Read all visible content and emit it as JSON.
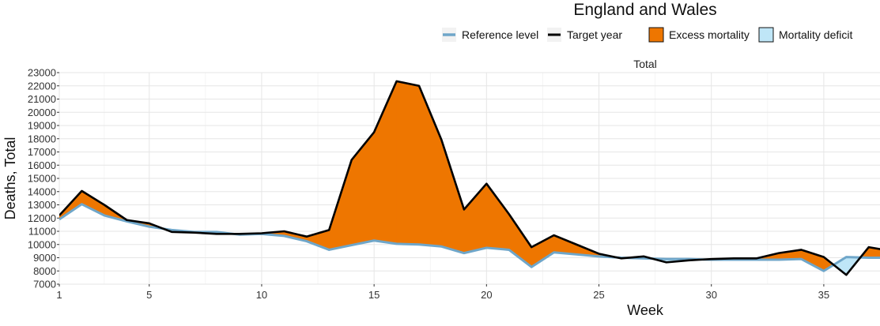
{
  "chart_data": {
    "type": "area",
    "title": "England and Wales",
    "facet_label": "Total",
    "xlabel": "Week",
    "ylabel": "Deaths, Total",
    "xlim": [
      1,
      37.5
    ],
    "ylim": [
      7000,
      23000
    ],
    "x_ticks": [
      1,
      5,
      10,
      15,
      20,
      25,
      30,
      35
    ],
    "y_ticks": [
      7000,
      8000,
      9000,
      10000,
      11000,
      12000,
      13000,
      14000,
      15000,
      16000,
      17000,
      18000,
      19000,
      20000,
      21000,
      22000,
      23000
    ],
    "grid": true,
    "legend_position": "top-right",
    "legend": [
      {
        "key": "reference",
        "label": "Reference level",
        "kind": "line",
        "color": "#6fa6c9"
      },
      {
        "key": "target",
        "label": "Target year",
        "kind": "line",
        "color": "#000000"
      },
      {
        "key": "excess",
        "label": "Excess mortality",
        "kind": "fill",
        "color": "#ee7600"
      },
      {
        "key": "deficit",
        "label": "Mortality deficit",
        "kind": "fill",
        "color": "#bfe6f7"
      }
    ],
    "x": [
      1,
      2,
      3,
      4,
      5,
      6,
      7,
      8,
      9,
      10,
      11,
      12,
      13,
      14,
      15,
      16,
      17,
      18,
      19,
      20,
      21,
      22,
      23,
      24,
      25,
      26,
      27,
      28,
      29,
      30,
      31,
      32,
      33,
      34,
      35,
      36,
      37,
      38
    ],
    "series": [
      {
        "name": "Reference level",
        "key": "reference",
        "values": [
          11900,
          13050,
          12200,
          11750,
          11350,
          11100,
          10950,
          10950,
          10750,
          10800,
          10650,
          10250,
          9600,
          9950,
          10300,
          10050,
          10000,
          9850,
          9350,
          9750,
          9600,
          8300,
          9400,
          9250,
          9100,
          9000,
          8950,
          8900,
          8900,
          8850,
          8850,
          8850,
          8850,
          8900,
          8000,
          9050,
          9000,
          9000
        ]
      },
      {
        "name": "Target year",
        "key": "target",
        "values": [
          12200,
          14050,
          13000,
          11850,
          11600,
          10950,
          10900,
          10800,
          10800,
          10850,
          11000,
          10600,
          11100,
          16400,
          18500,
          22350,
          22000,
          17900,
          12650,
          14600,
          12300,
          9800,
          10700,
          10000,
          9300,
          8950,
          9100,
          8650,
          8800,
          8900,
          8950,
          8950,
          9350,
          9600,
          9050,
          7700,
          9800,
          9500
        ]
      }
    ],
    "colors": {
      "excess": "#ee7600",
      "deficit": "#bfe6f7",
      "reference": "#6fa6c9",
      "target": "#000000",
      "grid": "#e6e6e6"
    }
  }
}
